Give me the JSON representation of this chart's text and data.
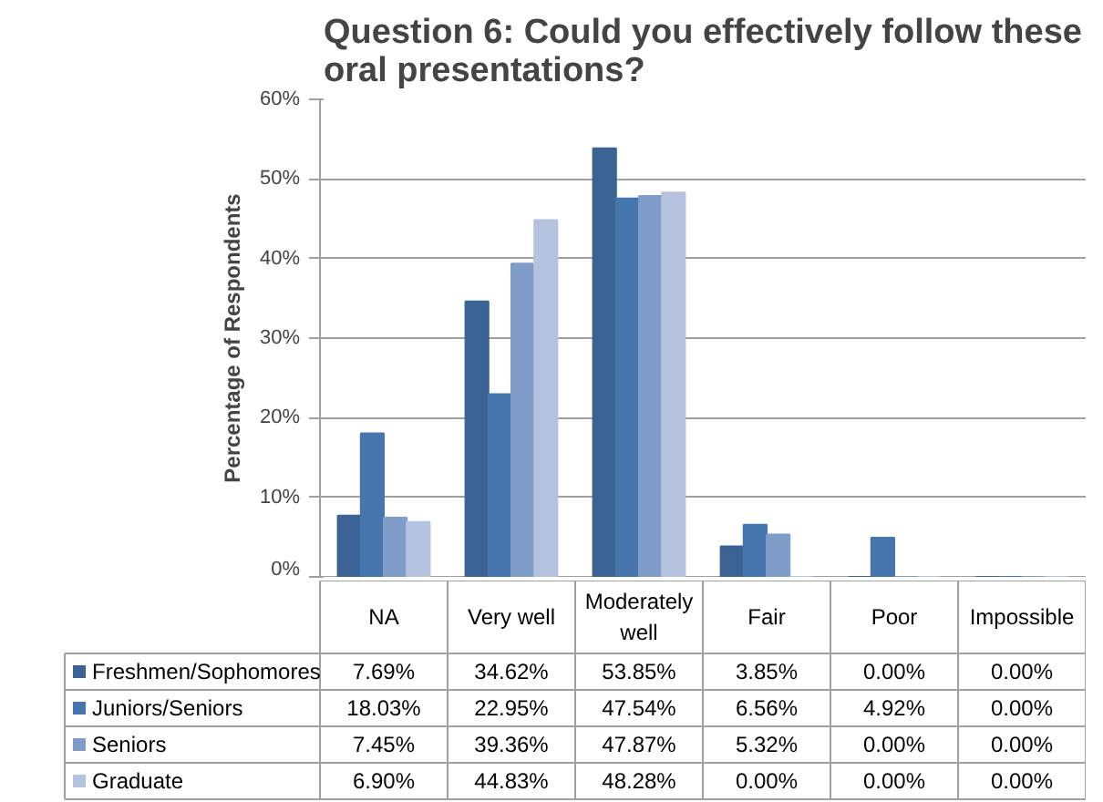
{
  "chart_data": {
    "type": "bar",
    "title": "Question 6: Could you effectively follow these oral presentations?",
    "ylabel": "Percentage of Respondents",
    "categories": [
      "NA",
      "Very well",
      "Moderately well",
      "Fair",
      "Poor",
      "Impossible"
    ],
    "series": [
      {
        "name": "Freshmen/Sophomores",
        "color": "#3b6393",
        "values": [
          7.69,
          34.62,
          53.85,
          3.85,
          0.0,
          0.0
        ],
        "value_labels": [
          "7.69%",
          "34.62%",
          "53.85%",
          "3.85%",
          "0.00%",
          "0.00%"
        ]
      },
      {
        "name": "Juniors/Seniors",
        "color": "#4775ad",
        "values": [
          18.03,
          22.95,
          47.54,
          6.56,
          4.92,
          0.0
        ],
        "value_labels": [
          "18.03%",
          "22.95%",
          "47.54%",
          "6.56%",
          "4.92%",
          "0.00%"
        ]
      },
      {
        "name": "Seniors",
        "color": "#7f9dc8",
        "values": [
          7.45,
          39.36,
          47.87,
          5.32,
          0.0,
          0.0
        ],
        "value_labels": [
          "7.45%",
          "39.36%",
          "47.87%",
          "5.32%",
          "0.00%",
          "0.00%"
        ]
      },
      {
        "name": "Graduate",
        "color": "#b5c3de",
        "values": [
          6.9,
          44.83,
          48.28,
          0.0,
          0.0,
          0.0
        ],
        "value_labels": [
          "6.90%",
          "44.83%",
          "48.28%",
          "0.00%",
          "0.00%",
          "0.00%"
        ]
      }
    ],
    "ylim": [
      0,
      60
    ],
    "yticks": [
      {
        "value": 0,
        "label": "0%"
      },
      {
        "value": 10,
        "label": "10%"
      },
      {
        "value": 20,
        "label": "20%"
      },
      {
        "value": 30,
        "label": "30%"
      },
      {
        "value": 40,
        "label": "40%"
      },
      {
        "value": 50,
        "label": "50%"
      },
      {
        "value": 60,
        "label": "60%"
      }
    ],
    "grid": "y",
    "legend": "bottom"
  }
}
